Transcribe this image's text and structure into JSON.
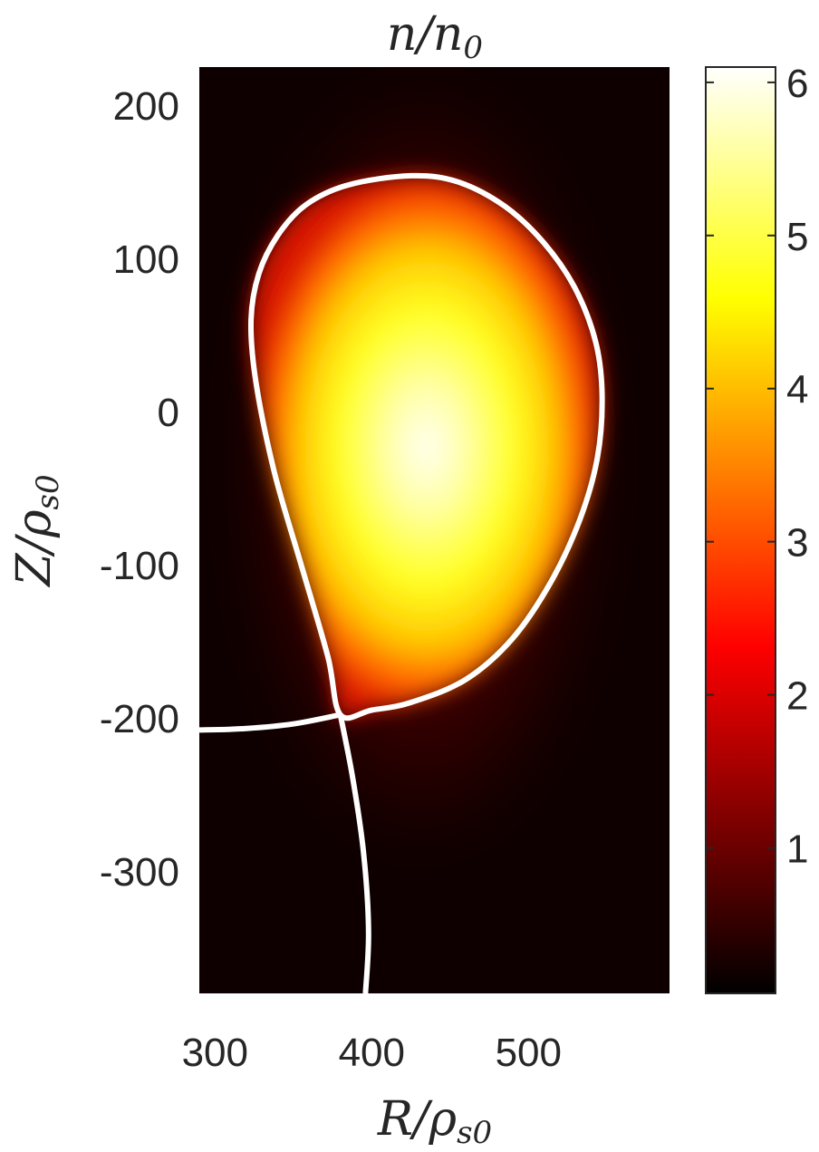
{
  "chart_data": {
    "type": "heatmap",
    "title": "n/n0",
    "title_parts": {
      "base": "n/n",
      "sub": "0"
    },
    "xlabel": "R/ρs0",
    "xlabel_parts": {
      "base": "R/ρ",
      "sub": "s0"
    },
    "ylabel": "Z/ρs0",
    "ylabel_parts": {
      "base": "Z/ρ",
      "sub": "s0"
    },
    "xlim": [
      290,
      590
    ],
    "ylim": [
      -380,
      225
    ],
    "x_ticks": [
      300,
      400,
      500
    ],
    "y_ticks": [
      200,
      100,
      0,
      -100,
      -200,
      -300
    ],
    "colorbar": {
      "label": "",
      "range": [
        0.05,
        6.1
      ],
      "ticks": [
        1,
        2,
        3,
        4,
        5,
        6
      ],
      "colormap": "hot"
    },
    "density_field": {
      "peak_value": 6.05,
      "peak_location": [
        447,
        5
      ],
      "background_value": 0.1
    },
    "separatrix": {
      "color": "#ffffff",
      "x_point": [
        380,
        -198
      ],
      "core_boundary": [
        [
          380,
          -198
        ],
        [
          372,
          -160
        ],
        [
          355,
          -100
        ],
        [
          338,
          -40
        ],
        [
          326,
          20
        ],
        [
          323,
          60
        ],
        [
          328,
          90
        ],
        [
          340,
          115
        ],
        [
          358,
          135
        ],
        [
          385,
          148
        ],
        [
          425,
          154
        ],
        [
          455,
          150
        ],
        [
          485,
          134
        ],
        [
          510,
          110
        ],
        [
          530,
          80
        ],
        [
          543,
          45
        ],
        [
          547,
          10
        ],
        [
          544,
          -30
        ],
        [
          533,
          -70
        ],
        [
          515,
          -110
        ],
        [
          490,
          -148
        ],
        [
          460,
          -175
        ],
        [
          425,
          -190
        ],
        [
          400,
          -195
        ],
        [
          380,
          -198
        ]
      ],
      "outer_leg": [
        [
          290,
          -208
        ],
        [
          320,
          -207
        ],
        [
          350,
          -204
        ],
        [
          380,
          -198
        ]
      ],
      "lower_leg": [
        [
          380,
          -198
        ],
        [
          388,
          -240
        ],
        [
          395,
          -290
        ],
        [
          398,
          -340
        ],
        [
          396,
          -380
        ]
      ]
    }
  }
}
